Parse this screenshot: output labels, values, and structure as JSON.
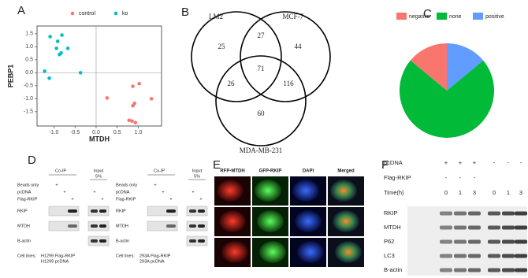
{
  "panel_labels": [
    "A",
    "B",
    "C",
    "D",
    "E",
    "F"
  ],
  "chart_data": [
    {
      "type": "scatter",
      "xlabel": "MTDH",
      "ylabel": "PEBP1",
      "xlim": [
        -1.4,
        1.55
      ],
      "ylim": [
        -2.05,
        1.8
      ],
      "xticks": [
        {
          "value": -1,
          "label": "-1.0"
        },
        -0.5,
        {
          "value": 0,
          "label": "0.0"
        },
        0.5,
        {
          "value": 1,
          "label": "1.0"
        }
      ],
      "yticks": [
        1.5,
        {
          "value": 1,
          "label": "1.0"
        },
        0.5,
        {
          "value": 0,
          "label": "0.0"
        },
        -0.5,
        {
          "value": -1,
          "label": "-1.0"
        },
        -1.5
      ],
      "series": [
        {
          "name": "control",
          "color": "#f8766d",
          "x": [
            0.87,
            1.02,
            0.26,
            1.31,
            0.91,
            0.87,
            0.78,
            0.85,
            0.93
          ],
          "values": [
            -0.52,
            -0.42,
            -0.97,
            -1.0,
            -1.18,
            -1.27,
            -1.83,
            -1.86,
            -1.92
          ]
        },
        {
          "name": "ko",
          "color": "#00bfc4",
          "x": [
            -0.81,
            -1.09,
            -0.91,
            -0.67,
            -0.94,
            -0.87,
            -0.83,
            -1.22,
            -1.11,
            -0.37
          ],
          "values": [
            1.45,
            1.39,
            1.21,
            0.94,
            0.94,
            0.7,
            0.76,
            0.06,
            -0.21,
            0.0
          ]
        }
      ]
    },
    {
      "type": "venn",
      "sets": [
        "LM2",
        "MCF-7",
        "MDA-MB-231"
      ],
      "values": [
        25,
        44,
        60,
        27,
        26,
        116,
        71
      ]
    },
    {
      "type": "pie",
      "categories": [
        "negative",
        "none",
        "positive"
      ],
      "values": [
        14,
        72,
        14
      ],
      "colors": [
        "#f8766d",
        "#00ba38",
        "#619cff"
      ]
    }
  ],
  "blots_d": [
    {
      "header": [
        "Co-IP",
        "Input",
        "5%"
      ],
      "rows": [
        {
          "label": "Beads only",
          "signs": [
            "+",
            null,
            null,
            null,
            null
          ]
        },
        {
          "label": "pcDNA",
          "signs": [
            null,
            "+",
            null,
            "+",
            null
          ]
        },
        {
          "label": "Flag-RKIP",
          "signs": [
            null,
            null,
            "+",
            null,
            "+"
          ]
        }
      ],
      "bands": [
        "RKIP",
        "MTDH",
        "B-actin"
      ],
      "cell_lines_label": "Cell lines:",
      "cell_lines": [
        "H1299 Flag-RKIP",
        "H1299 pcDNA"
      ]
    },
    {
      "header": [
        "Co-IP",
        "Input",
        "5%"
      ],
      "rows": [
        {
          "label": "Beads only",
          "signs": [
            "+",
            null,
            null,
            null,
            null
          ]
        },
        {
          "label": "pcDNA",
          "signs": [
            null,
            "+",
            null,
            "+",
            null
          ]
        },
        {
          "label": "Flag-RKIP",
          "signs": [
            null,
            null,
            "+",
            null,
            "+"
          ]
        }
      ],
      "bands": [
        "RKIP",
        "MTDH",
        "B-actin"
      ],
      "cell_lines_label": "Cell lines:",
      "cell_lines": [
        "293A Flag-RKIP",
        "293A pcDNA"
      ]
    }
  ],
  "microscopy": {
    "columns": [
      "RFP-MTDH",
      "GFP-RKIP",
      "DAPI",
      "Merged"
    ]
  },
  "blot_f": {
    "rows": [
      {
        "label": "pcDNA",
        "marks": [
          "+",
          "+",
          "+",
          "-",
          "-",
          "-"
        ]
      },
      {
        "label": "Flag-RKIP",
        "marks": [
          "-",
          "-",
          "-",
          null,
          null,
          null
        ]
      },
      {
        "label": "Time(h)",
        "marks": [
          "0",
          "1",
          "3",
          "0",
          "1",
          "3"
        ]
      }
    ],
    "bands": [
      "RKIP",
      "MTDH",
      "P62",
      "LC3",
      "B-actin"
    ]
  }
}
